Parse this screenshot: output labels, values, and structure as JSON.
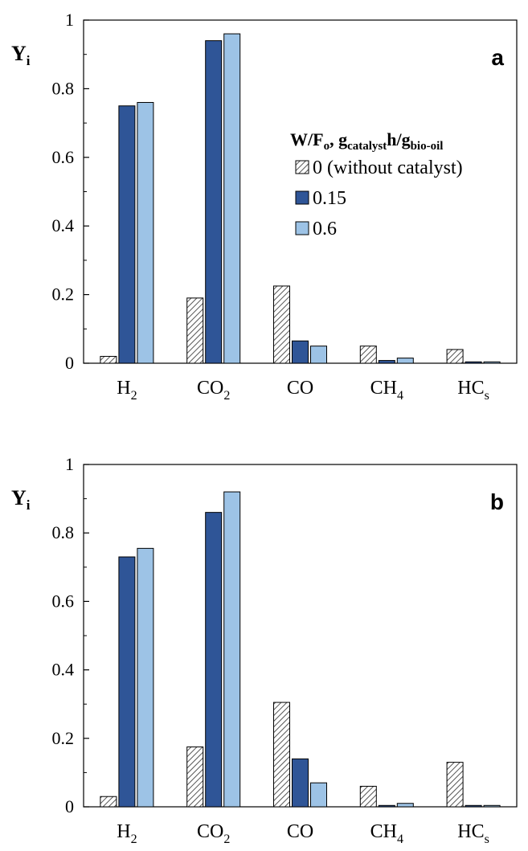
{
  "chart_data": [
    {
      "type": "bar",
      "panel_label": "a",
      "ylabel": "Y",
      "ylabel_sub": "i",
      "ylim": [
        0,
        1
      ],
      "yticks": [
        "0",
        "0.2",
        "0.4",
        "0.6",
        "0.8",
        "1"
      ],
      "categories": [
        {
          "main": "H",
          "sub": "2"
        },
        {
          "main": "CO",
          "sub": "2"
        },
        {
          "main": "CO",
          "sub": ""
        },
        {
          "main": "CH",
          "sub": "4"
        },
        {
          "main": "HC",
          "sub": "s"
        }
      ],
      "legend": {
        "title_main": "W/F",
        "title_sub1": "o",
        "title_mid": ", g",
        "title_sub2": "catalyst",
        "title_mid2": "h/g",
        "title_sub3": "bio-oil",
        "placement": "right"
      },
      "series": [
        {
          "name": "0 (without catalyst)",
          "values": [
            0.02,
            0.19,
            0.225,
            0.05,
            0.04
          ],
          "pattern": "hatched"
        },
        {
          "name": "0.15",
          "values": [
            0.75,
            0.94,
            0.065,
            0.008,
            0.004
          ],
          "color": "#2f5597"
        },
        {
          "name": "0.6",
          "values": [
            0.76,
            0.96,
            0.05,
            0.015,
            0.004
          ],
          "color": "#9dc3e6"
        }
      ]
    },
    {
      "type": "bar",
      "panel_label": "b",
      "ylabel": "Y",
      "ylabel_sub": "i",
      "ylim": [
        0,
        1
      ],
      "yticks": [
        "0",
        "0.2",
        "0.4",
        "0.6",
        "0.8",
        "1"
      ],
      "categories": [
        {
          "main": "H",
          "sub": "2"
        },
        {
          "main": "CO",
          "sub": "2"
        },
        {
          "main": "CO",
          "sub": ""
        },
        {
          "main": "CH",
          "sub": "4"
        },
        {
          "main": "HC",
          "sub": "s"
        }
      ],
      "series": [
        {
          "name": "0 (without catalyst)",
          "values": [
            0.03,
            0.175,
            0.305,
            0.06,
            0.13
          ],
          "pattern": "hatched"
        },
        {
          "name": "0.15",
          "values": [
            0.73,
            0.86,
            0.14,
            0.004,
            0.004
          ],
          "color": "#2f5597"
        },
        {
          "name": "0.6",
          "values": [
            0.755,
            0.92,
            0.07,
            0.01,
            0.004
          ],
          "color": "#9dc3e6"
        }
      ]
    }
  ]
}
